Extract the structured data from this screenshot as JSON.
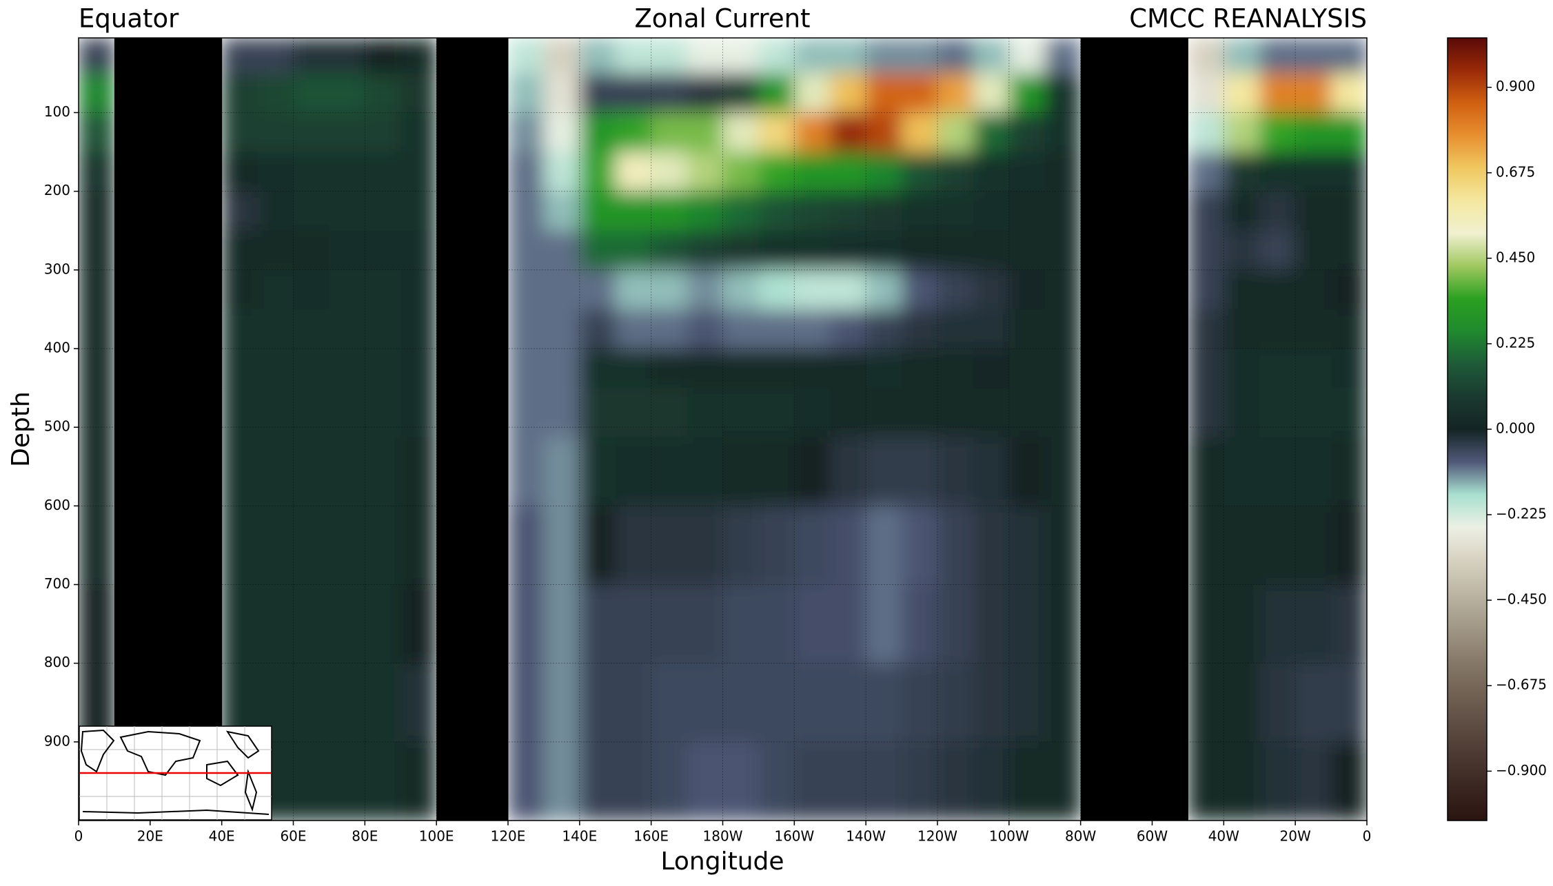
{
  "chart_data": {
    "type": "contour",
    "title": "Zonal Current",
    "title_left": "Equator",
    "title_right": "CMCC REANALYSIS",
    "xlabel": "Longitude",
    "ylabel": "Depth",
    "xlim": [
      0,
      360
    ],
    "xticks": [
      0,
      {
        "value": 20,
        "label": "20E"
      },
      {
        "value": 40,
        "label": "40E"
      },
      {
        "value": 60,
        "label": "60E"
      },
      {
        "value": 80,
        "label": "80E"
      },
      {
        "value": 100,
        "label": "100E"
      },
      {
        "value": 120,
        "label": "120E"
      },
      {
        "value": 140,
        "label": "140E"
      },
      {
        "value": 160,
        "label": "160E"
      },
      {
        "value": 180,
        "label": "180W"
      },
      {
        "value": 200,
        "label": "160W"
      },
      {
        "value": 220,
        "label": "140W"
      },
      {
        "value": 240,
        "label": "120W"
      },
      {
        "value": 260,
        "label": "100W"
      },
      {
        "value": 280,
        "label": "80W"
      },
      {
        "value": 300,
        "label": "60W"
      },
      {
        "value": 320,
        "label": "40W"
      },
      {
        "value": 340,
        "label": "20W"
      },
      {
        "value": 360,
        "label": "0"
      }
    ],
    "ylim": [
      1000,
      5
    ],
    "yticks": [
      100,
      200,
      300,
      400,
      500,
      600,
      700,
      800,
      900
    ],
    "grid": true,
    "x": [
      5,
      15,
      25,
      35,
      45,
      55,
      65,
      75,
      85,
      95,
      105,
      115,
      125,
      135,
      145,
      155,
      165,
      175,
      185,
      195,
      205,
      215,
      225,
      235,
      245,
      255,
      265,
      275,
      285,
      295,
      305,
      315,
      325,
      335,
      345,
      355
    ],
    "y": [
      25,
      75,
      125,
      175,
      225,
      275,
      325,
      375,
      425,
      475,
      550,
      650,
      750,
      850,
      950
    ],
    "values": [
      [
        -0.05,
        0.25,
        0.15,
        0.05,
        0.03,
        0.03,
        0.02,
        0.02,
        0.02,
        0.02,
        0.02,
        0.02,
        0.0,
        0.0,
        0.02
      ],
      [
        null,
        null,
        null,
        null,
        null,
        null,
        null,
        null,
        null,
        null,
        null,
        null,
        null,
        null,
        null
      ],
      [
        null,
        null,
        null,
        null,
        null,
        null,
        null,
        null,
        null,
        null,
        null,
        null,
        null,
        null,
        null
      ],
      [
        null,
        null,
        null,
        null,
        null,
        null,
        null,
        null,
        null,
        null,
        null,
        null,
        null,
        null,
        null
      ],
      [
        -0.05,
        0.1,
        0.1,
        0.02,
        -0.03,
        0.03,
        0.03,
        0.05,
        0.05,
        0.05,
        0.05,
        0.05,
        0.05,
        0.05,
        0.05
      ],
      [
        -0.05,
        0.12,
        0.1,
        0.04,
        0.04,
        0.03,
        0.05,
        0.05,
        0.05,
        0.05,
        0.06,
        0.06,
        0.06,
        0.06,
        0.05
      ],
      [
        -0.02,
        0.15,
        0.1,
        0.05,
        0.05,
        0.03,
        0.04,
        0.05,
        0.06,
        0.06,
        0.06,
        0.06,
        0.06,
        0.06,
        0.06
      ],
      [
        -0.02,
        0.15,
        0.1,
        0.06,
        0.05,
        0.04,
        0.05,
        0.06,
        0.06,
        0.06,
        0.06,
        0.06,
        0.06,
        0.06,
        0.06
      ],
      [
        0.0,
        0.12,
        0.1,
        0.06,
        0.05,
        0.04,
        0.05,
        0.05,
        0.05,
        0.05,
        0.05,
        0.05,
        0.05,
        0.05,
        0.05
      ],
      [
        0.02,
        0.08,
        0.06,
        0.05,
        0.05,
        0.04,
        0.04,
        0.04,
        0.04,
        0.04,
        0.03,
        0.02,
        0.0,
        -0.02,
        0.02
      ],
      [
        null,
        null,
        null,
        null,
        null,
        null,
        null,
        null,
        null,
        null,
        null,
        null,
        null,
        null,
        null
      ],
      [
        null,
        null,
        null,
        null,
        null,
        null,
        null,
        null,
        null,
        null,
        null,
        null,
        null,
        null,
        null
      ],
      [
        -0.2,
        -0.15,
        -0.12,
        -0.1,
        -0.1,
        -0.1,
        -0.1,
        -0.1,
        -0.1,
        -0.1,
        -0.1,
        -0.08,
        -0.08,
        -0.08,
        -0.08
      ],
      [
        -0.35,
        -0.3,
        -0.25,
        -0.2,
        -0.15,
        -0.1,
        -0.1,
        -0.1,
        -0.1,
        -0.1,
        -0.12,
        -0.12,
        -0.12,
        -0.12,
        -0.12
      ],
      [
        -0.15,
        -0.05,
        0.3,
        0.35,
        0.3,
        0.2,
        -0.1,
        -0.05,
        0.05,
        0.08,
        0.05,
        0.0,
        -0.05,
        -0.05,
        -0.05
      ],
      [
        -0.2,
        -0.05,
        0.35,
        0.55,
        0.3,
        0.2,
        -0.15,
        -0.1,
        0.05,
        0.08,
        0.04,
        -0.03,
        -0.05,
        -0.05,
        -0.05
      ],
      [
        -0.2,
        -0.05,
        0.4,
        0.5,
        0.3,
        0.15,
        -0.15,
        -0.1,
        0.03,
        0.08,
        0.04,
        -0.03,
        -0.05,
        -0.06,
        -0.06
      ],
      [
        -0.25,
        -0.03,
        0.4,
        0.45,
        0.25,
        0.1,
        -0.12,
        -0.08,
        0.03,
        0.06,
        0.04,
        -0.03,
        -0.05,
        -0.06,
        -0.08
      ],
      [
        -0.25,
        0.1,
        0.5,
        0.4,
        0.2,
        0.08,
        -0.15,
        -0.1,
        0.03,
        0.06,
        0.03,
        -0.04,
        -0.06,
        -0.06,
        -0.08
      ],
      [
        -0.2,
        0.3,
        0.65,
        0.35,
        0.15,
        0.05,
        -0.18,
        -0.1,
        0.02,
        0.05,
        0.02,
        -0.05,
        -0.06,
        -0.06,
        -0.06
      ],
      [
        -0.15,
        0.5,
        0.8,
        0.3,
        0.12,
        0.05,
        -0.2,
        -0.1,
        0.02,
        0.04,
        0.0,
        -0.06,
        -0.07,
        -0.06,
        -0.05
      ],
      [
        -0.15,
        0.7,
        0.95,
        0.3,
        0.1,
        0.04,
        -0.2,
        -0.08,
        0.03,
        0.03,
        -0.03,
        -0.07,
        -0.07,
        -0.06,
        -0.05
      ],
      [
        -0.12,
        0.85,
        0.9,
        0.25,
        0.08,
        0.04,
        -0.15,
        -0.05,
        0.04,
        0.02,
        -0.04,
        -0.1,
        -0.1,
        -0.06,
        -0.05
      ],
      [
        -0.12,
        0.85,
        0.7,
        0.15,
        0.05,
        0.03,
        -0.08,
        -0.03,
        0.03,
        0.02,
        -0.04,
        -0.08,
        -0.07,
        -0.05,
        -0.04
      ],
      [
        -0.1,
        0.75,
        0.45,
        0.1,
        0.05,
        0.03,
        -0.05,
        -0.02,
        0.02,
        0.02,
        -0.03,
        -0.05,
        -0.05,
        -0.04,
        -0.03
      ],
      [
        -0.15,
        0.5,
        0.2,
        0.06,
        0.04,
        0.02,
        -0.03,
        -0.02,
        0.01,
        0.02,
        -0.02,
        -0.03,
        -0.03,
        -0.03,
        -0.02
      ],
      [
        -0.25,
        0.3,
        0.1,
        0.04,
        0.03,
        0.03,
        0.01,
        0.02,
        0.02,
        0.03,
        0.0,
        -0.02,
        -0.02,
        -0.02,
        0.02
      ],
      [
        -0.1,
        0.05,
        0.05,
        0.03,
        0.03,
        0.03,
        0.03,
        0.03,
        0.03,
        0.03,
        0.03,
        0.03,
        0.03,
        0.02,
        0.02
      ],
      [
        null,
        null,
        null,
        null,
        null,
        null,
        null,
        null,
        null,
        null,
        null,
        null,
        null,
        null,
        null
      ],
      [
        null,
        null,
        null,
        null,
        null,
        null,
        null,
        null,
        null,
        null,
        null,
        null,
        null,
        null,
        null
      ],
      [
        null,
        null,
        null,
        null,
        null,
        null,
        null,
        null,
        null,
        null,
        null,
        null,
        null,
        null,
        null
      ],
      [
        -0.35,
        -0.3,
        -0.2,
        -0.1,
        -0.05,
        -0.05,
        -0.05,
        -0.03,
        -0.03,
        -0.03,
        0.02,
        0.03,
        0.03,
        0.03,
        0.03
      ],
      [
        -0.15,
        0.6,
        0.45,
        0.08,
        0.03,
        -0.03,
        0.02,
        0.03,
        0.04,
        0.04,
        0.04,
        0.03,
        0.02,
        0.02,
        0.02
      ],
      [
        -0.1,
        0.8,
        0.35,
        0.06,
        -0.03,
        -0.05,
        0.02,
        0.03,
        0.05,
        0.05,
        0.04,
        0.03,
        -0.02,
        -0.03,
        -0.02
      ],
      [
        -0.1,
        0.8,
        0.3,
        0.06,
        0.03,
        0.02,
        0.02,
        0.03,
        0.05,
        0.05,
        0.04,
        0.03,
        -0.02,
        -0.04,
        -0.03
      ],
      [
        -0.1,
        0.6,
        0.3,
        0.05,
        0.03,
        0.02,
        0.0,
        0.02,
        0.04,
        0.05,
        0.03,
        0.0,
        -0.03,
        -0.04,
        0.0
      ]
    ],
    "mask_color": "#000000",
    "colors": [
      "#2a1410",
      "#3a2620",
      "#4c3a32",
      "#5f4e44",
      "#736456",
      "#8a7c6c",
      "#a39a88",
      "#bdb6a4",
      "#d8d2c2",
      "#ecf0e4",
      "#a8e0d0",
      "#505878",
      "#142424",
      "#1a3a30",
      "#1e5a38",
      "#1f8a2e",
      "#2aa020",
      "#a0c860",
      "#f0f0d0",
      "#f4e8a0",
      "#f0c860",
      "#e89030",
      "#d06010",
      "#9a2a08",
      "#5a0a08"
    ],
    "clim": [
      -1.03,
      1.03
    ],
    "cticks": [
      {
        "value": -0.9,
        "label": "−0.900"
      },
      {
        "value": -0.675,
        "label": "−0.675"
      },
      {
        "value": -0.45,
        "label": "−0.450"
      },
      {
        "value": -0.225,
        "label": "−0.225"
      },
      {
        "value": 0,
        "label": "0.000"
      },
      {
        "value": 0.225,
        "label": "0.225"
      },
      {
        "value": 0.45,
        "label": "0.450"
      },
      {
        "value": 0.675,
        "label": "0.675"
      },
      {
        "value": 0.9,
        "label": "0.900"
      }
    ]
  }
}
